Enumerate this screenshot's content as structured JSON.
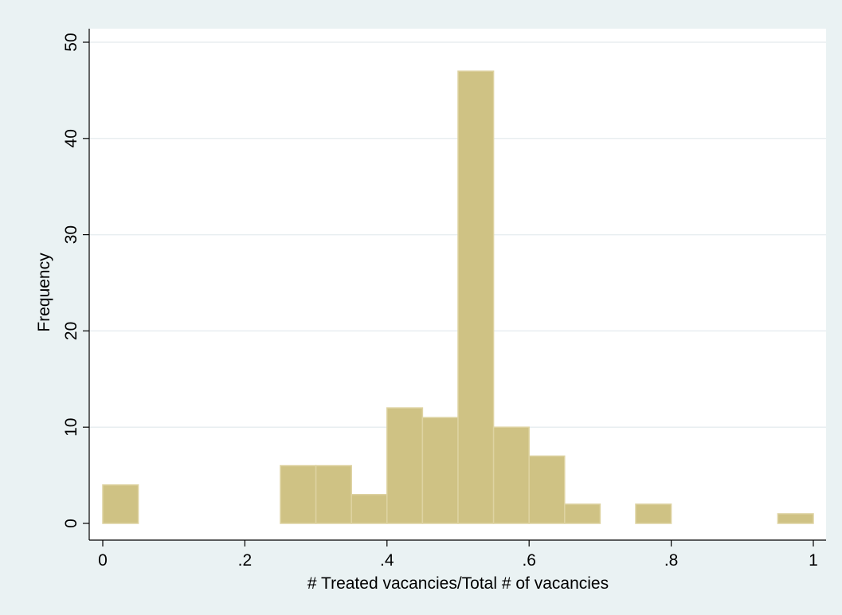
{
  "chart_data": {
    "type": "bar",
    "subtype": "histogram",
    "xlabel": "# Treated vacancies/Total # of vacancies",
    "ylabel": "Frequency",
    "xlim": [
      0,
      1
    ],
    "ylim": [
      0,
      50
    ],
    "x_ticks": [
      0,
      0.2,
      0.4,
      0.6,
      0.8,
      1
    ],
    "x_tick_labels": [
      "0",
      ".2",
      ".4",
      ".6",
      ".8",
      "1"
    ],
    "y_ticks": [
      0,
      10,
      20,
      30,
      40,
      50
    ],
    "y_tick_labels": [
      "0",
      "10",
      "20",
      "30",
      "40",
      "50"
    ],
    "bin_width": 0.05,
    "bins": [
      {
        "x0": 0.0,
        "x1": 0.05,
        "value": 4
      },
      {
        "x0": 0.25,
        "x1": 0.3,
        "value": 6
      },
      {
        "x0": 0.3,
        "x1": 0.35,
        "value": 6
      },
      {
        "x0": 0.35,
        "x1": 0.4,
        "value": 3
      },
      {
        "x0": 0.4,
        "x1": 0.45,
        "value": 12
      },
      {
        "x0": 0.45,
        "x1": 0.5,
        "value": 11
      },
      {
        "x0": 0.5,
        "x1": 0.55,
        "value": 47
      },
      {
        "x0": 0.55,
        "x1": 0.6,
        "value": 10
      },
      {
        "x0": 0.6,
        "x1": 0.65,
        "value": 7
      },
      {
        "x0": 0.65,
        "x1": 0.7,
        "value": 2
      },
      {
        "x0": 0.75,
        "x1": 0.8,
        "value": 2
      },
      {
        "x0": 0.95,
        "x1": 1.0,
        "value": 1
      }
    ],
    "grid": true,
    "legend": "none",
    "colors": {
      "outer_background": "#eaf2f3",
      "plot_background": "#ffffff",
      "bar_fill": "#cfc284",
      "bar_edge": "#ded3a2",
      "grid": "#e8eef0"
    }
  }
}
